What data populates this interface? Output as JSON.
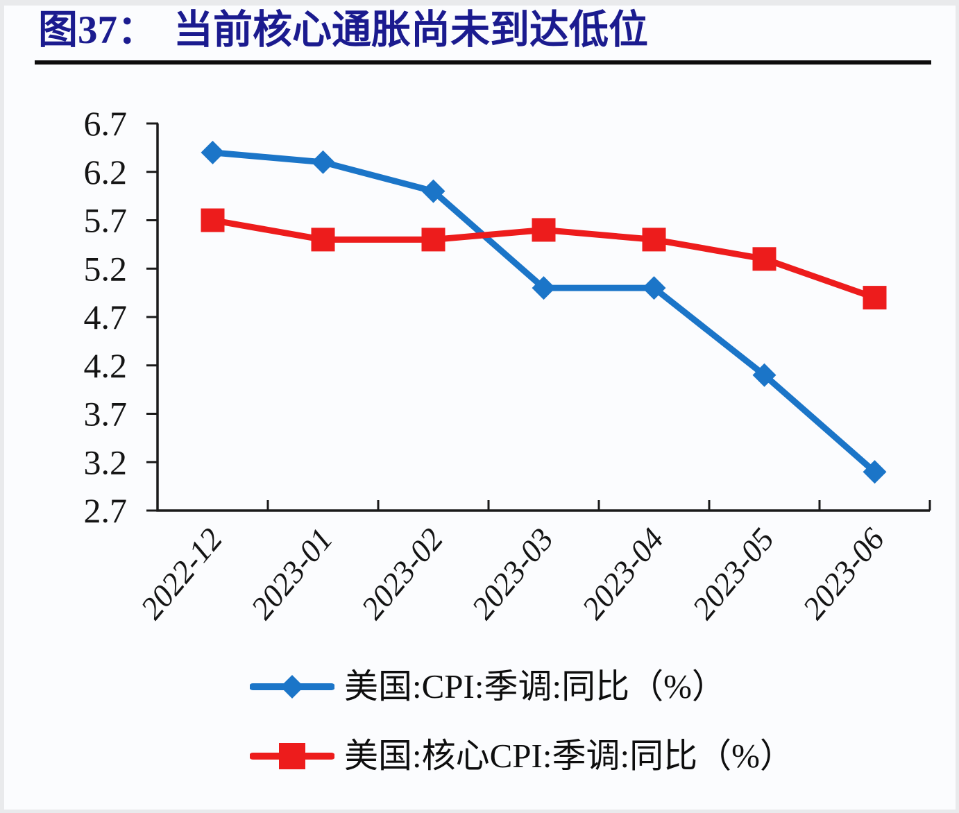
{
  "header": {
    "figure_label": "图37：",
    "title": "当前核心通胀尚未到达低位",
    "title_color": "#1B1B8F",
    "rule_color": "#0D0D0D"
  },
  "chart_data": {
    "type": "line",
    "title": "图37： 当前核心通胀尚未到达低位",
    "categories": [
      "2022-12",
      "2023-01",
      "2023-02",
      "2023-03",
      "2023-04",
      "2023-05",
      "2023-06"
    ],
    "series": [
      {
        "name": "美国:CPI:季调:同比（%）",
        "color": "#1B75C8",
        "marker": "diamond",
        "values": [
          6.4,
          6.3,
          6.0,
          5.0,
          5.0,
          4.1,
          3.1
        ]
      },
      {
        "name": "美国:核心CPI:季调:同比（%）",
        "color": "#ED1C1C",
        "marker": "square",
        "values": [
          5.7,
          5.5,
          5.5,
          5.6,
          5.5,
          5.3,
          4.9
        ]
      }
    ],
    "xlabel": "",
    "ylabel": "",
    "ylim": [
      2.7,
      6.7
    ],
    "ytick_step": 0.5,
    "yticks": [
      2.7,
      3.2,
      3.7,
      4.2,
      4.7,
      5.2,
      5.7,
      6.2,
      6.7
    ],
    "grid": false,
    "legend_position": "bottom-left",
    "axis_color": "#1A1A1A",
    "tick_label_color": "#141414"
  }
}
